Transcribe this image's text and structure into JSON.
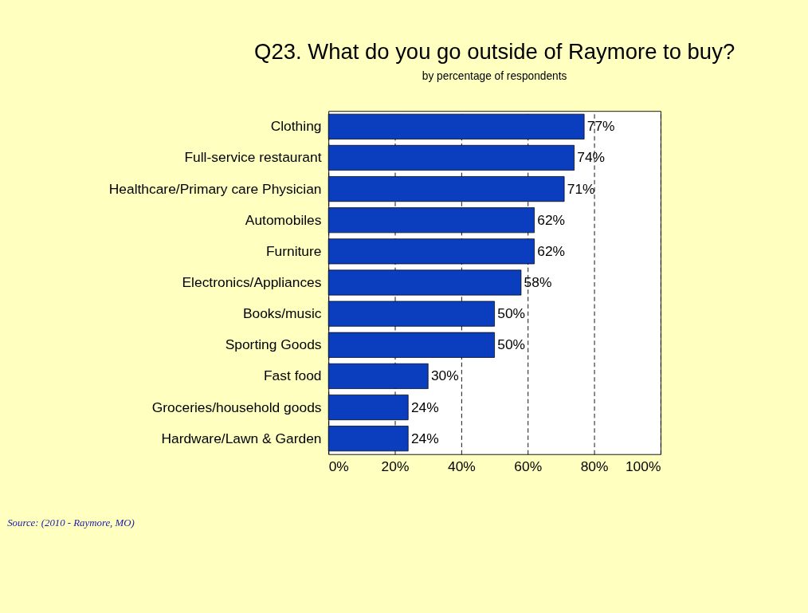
{
  "chart_data": {
    "type": "bar",
    "orientation": "horizontal",
    "title": "Q23. What do you go outside of Raymore to buy?",
    "subtitle": "by percentage of respondents",
    "categories": [
      "Clothing",
      "Full-service restaurant",
      "Healthcare/Primary care Physician",
      "Automobiles",
      "Furniture",
      "Electronics/Appliances",
      "Books/music",
      "Sporting Goods",
      "Fast food",
      "Groceries/household goods",
      "Hardware/Lawn & Garden"
    ],
    "values": [
      77,
      74,
      71,
      62,
      62,
      58,
      50,
      50,
      30,
      24,
      24
    ],
    "value_labels": [
      "77%",
      "74%",
      "71%",
      "62%",
      "62%",
      "58%",
      "50%",
      "50%",
      "30%",
      "24%",
      "24%"
    ],
    "color": "#0a3ebf",
    "xlim": [
      0,
      100
    ],
    "xticks": [
      {
        "value": 0,
        "label": "0%"
      },
      {
        "value": 20,
        "label": "20%"
      },
      {
        "value": 40,
        "label": "40%"
      },
      {
        "value": 60,
        "label": "60%"
      },
      {
        "value": 80,
        "label": "80%"
      },
      {
        "value": 100,
        "label": "100%"
      }
    ],
    "grid": "x",
    "annotations": [
      "Source:  (2010 - Raymore, MO)"
    ]
  }
}
